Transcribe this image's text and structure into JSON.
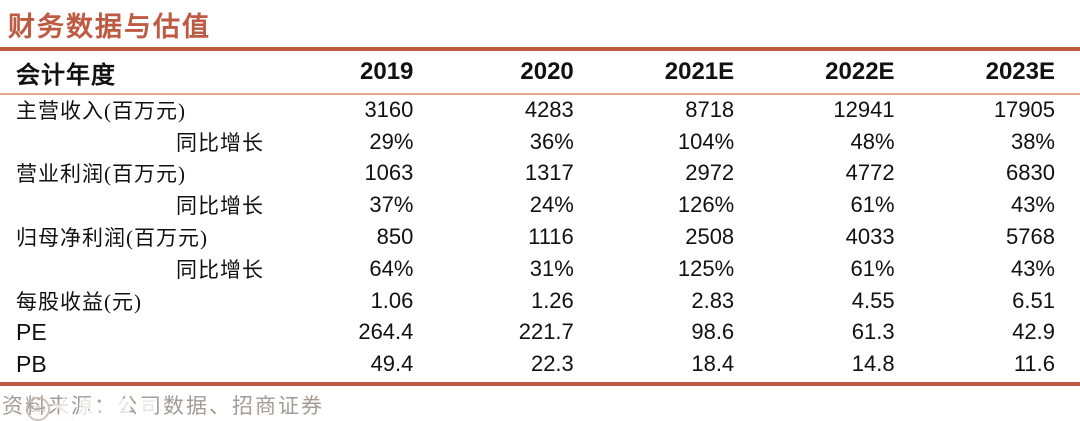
{
  "title": "财务数据与估值",
  "table": {
    "header": {
      "label": "会计年度",
      "years": [
        "2019",
        "2020",
        "2021E",
        "2022E",
        "2023E"
      ]
    },
    "rows": [
      {
        "label": "主营收入(百万元)",
        "indent": false,
        "values": [
          "3160",
          "4283",
          "8718",
          "12941",
          "17905"
        ]
      },
      {
        "label": "同比增长",
        "indent": true,
        "values": [
          "29%",
          "36%",
          "104%",
          "48%",
          "38%"
        ]
      },
      {
        "label": "营业利润(百万元)",
        "indent": false,
        "values": [
          "1063",
          "1317",
          "2972",
          "4772",
          "6830"
        ]
      },
      {
        "label": "同比增长",
        "indent": true,
        "values": [
          "37%",
          "24%",
          "126%",
          "61%",
          "43%"
        ]
      },
      {
        "label": "归母净利润(百万元)",
        "indent": false,
        "values": [
          "850",
          "1116",
          "2508",
          "4033",
          "5768"
        ]
      },
      {
        "label": "同比增长",
        "indent": true,
        "values": [
          "64%",
          "31%",
          "125%",
          "61%",
          "43%"
        ]
      },
      {
        "label": "每股收益(元)",
        "indent": false,
        "values": [
          "1.06",
          "1.26",
          "2.83",
          "4.55",
          "6.51"
        ]
      },
      {
        "label": "PE",
        "indent": false,
        "values": [
          "264.4",
          "221.7",
          "98.6",
          "61.3",
          "42.9"
        ]
      },
      {
        "label": "PB",
        "indent": false,
        "values": [
          "49.4",
          "22.3",
          "18.4",
          "14.8",
          "11.6"
        ]
      }
    ]
  },
  "footer": {
    "source_text": "资料来源：公司数据、招商证券",
    "watermark_text": "大数跨境",
    "watermark_logo_text": "500"
  },
  "colors": {
    "accent": "#BE5A41",
    "rule_light": "#EBA68D",
    "text": "#111111",
    "footer_gray": "#A39B94"
  }
}
